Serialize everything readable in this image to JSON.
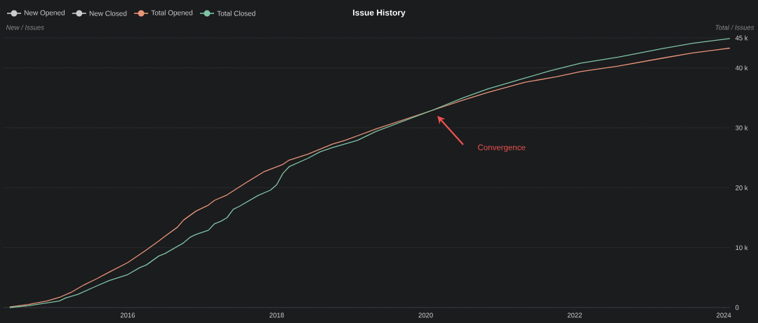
{
  "chart_data": {
    "type": "line",
    "title": "Issue History",
    "ylabel": "New / Issues",
    "y2label": "Total / Issues",
    "legend": "top left",
    "grid": "y",
    "xlim": [
      "2014-05",
      "2024-02"
    ],
    "xticks": [
      "2016",
      "2018",
      "2020",
      "2022",
      "2024"
    ],
    "y2lim": [
      0,
      45000
    ],
    "y2ticks": [
      0,
      {
        "value": 10000,
        "label": "10 k"
      },
      {
        "value": 20000,
        "label": "20 k"
      },
      {
        "value": 30000,
        "label": "30 k"
      },
      {
        "value": 40000,
        "label": "40 k"
      },
      {
        "value": 45000,
        "label": "45 k"
      }
    ],
    "annotations": [
      "Convergence"
    ],
    "series": [
      {
        "name": "New Opened",
        "color": "#cccccc"
      },
      {
        "name": "New Closed",
        "color": "#cccccc"
      },
      {
        "name": "Total Opened",
        "color": "#e8957a",
        "axis": "y2",
        "x": [
          "2014-06",
          "2014-09",
          "2014-12",
          "2015-02",
          "2015-04",
          "2015-06",
          "2015-08",
          "2015-10",
          "2016-01",
          "2016-03",
          "2016-04",
          "2016-06",
          "2016-07",
          "2016-09",
          "2016-10",
          "2016-12",
          "2017-02",
          "2017-03",
          "2017-05",
          "2017-08",
          "2017-11",
          "2018-02",
          "2018-03",
          "2018-06",
          "2018-10",
          "2018-12",
          "2019-05",
          "2020-02",
          "2020-07",
          "2020-11",
          "2021-05",
          "2021-10",
          "2022-02",
          "2022-08",
          "2023-03",
          "2023-08",
          "2024-02"
        ],
        "values": [
          100,
          500,
          1100,
          1700,
          2600,
          3800,
          4800,
          5900,
          7500,
          8900,
          9600,
          11100,
          11900,
          13400,
          14600,
          16100,
          17100,
          17900,
          18800,
          20800,
          22700,
          23900,
          24600,
          25600,
          27300,
          27900,
          29800,
          32900,
          34600,
          35900,
          37600,
          38500,
          39400,
          40300,
          41600,
          42500,
          43300
        ]
      },
      {
        "name": "Total Closed",
        "color": "#7fc4a4",
        "axis": "y2",
        "x": [
          "2014-06",
          "2014-09",
          "2015-02",
          "2015-03",
          "2015-05",
          "2015-08",
          "2015-10",
          "2016-01",
          "2016-03",
          "2016-04",
          "2016-06",
          "2016-07",
          "2016-10",
          "2016-11",
          "2016-12",
          "2017-02",
          "2017-03",
          "2017-04",
          "2017-05",
          "2017-06",
          "2017-07",
          "2017-10",
          "2017-12",
          "2018-01",
          "2018-02",
          "2018-03",
          "2018-06",
          "2018-08",
          "2018-10",
          "2019-02",
          "2019-05",
          "2020-02",
          "2020-07",
          "2020-11",
          "2021-05",
          "2021-09",
          "2022-02",
          "2022-08",
          "2023-03",
          "2023-08",
          "2024-02"
        ],
        "values": [
          0,
          300,
          1100,
          1600,
          2200,
          3600,
          4500,
          5500,
          6700,
          7100,
          8600,
          9000,
          10800,
          11700,
          12200,
          12900,
          14000,
          14400,
          15000,
          16400,
          16900,
          18700,
          19600,
          20500,
          22400,
          23500,
          24900,
          26000,
          26700,
          27900,
          29400,
          32900,
          35000,
          36500,
          38300,
          39500,
          40800,
          41800,
          43200,
          44100,
          44900
        ]
      }
    ]
  }
}
